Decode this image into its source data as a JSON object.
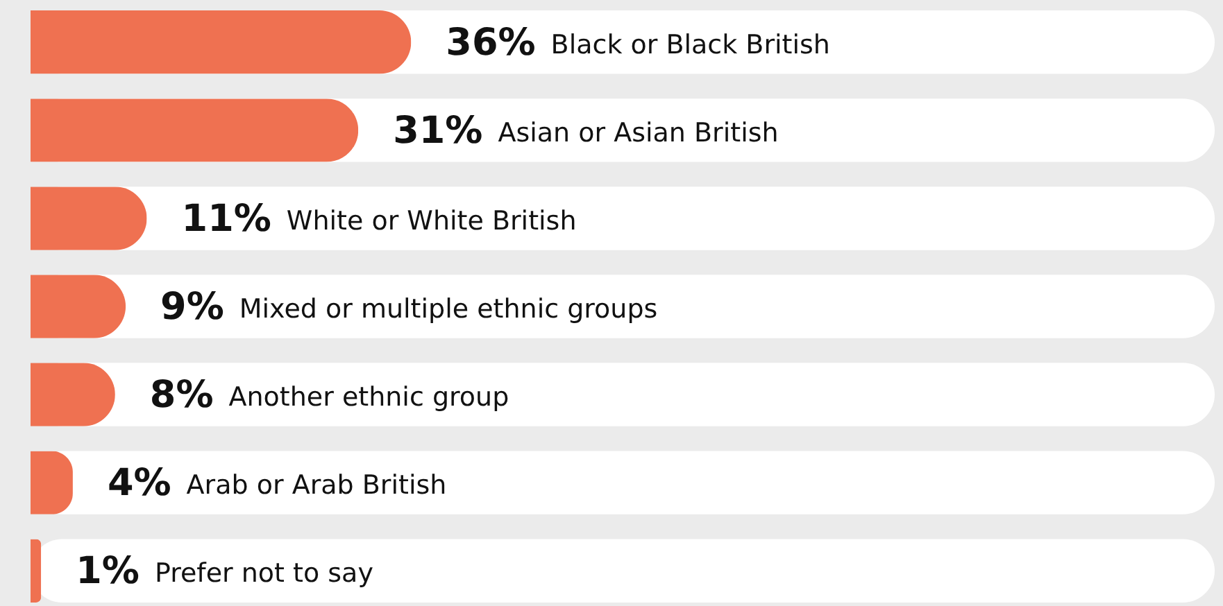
{
  "chart_data": {
    "type": "bar",
    "orientation": "horizontal",
    "categories": [
      "Black or Black British",
      "Asian or Asian British",
      "White or White British",
      "Mixed or multiple ethnic groups",
      "Another ethnic group",
      "Arab or Arab British",
      "Prefer not to say"
    ],
    "values": [
      36,
      31,
      11,
      9,
      8,
      4,
      1
    ],
    "value_labels": [
      "36%",
      "31%",
      "11%",
      "9%",
      "8%",
      "4%",
      "1%"
    ],
    "color": "#ef7151",
    "xlim": [
      0,
      112
    ],
    "tick_labels": false
  }
}
